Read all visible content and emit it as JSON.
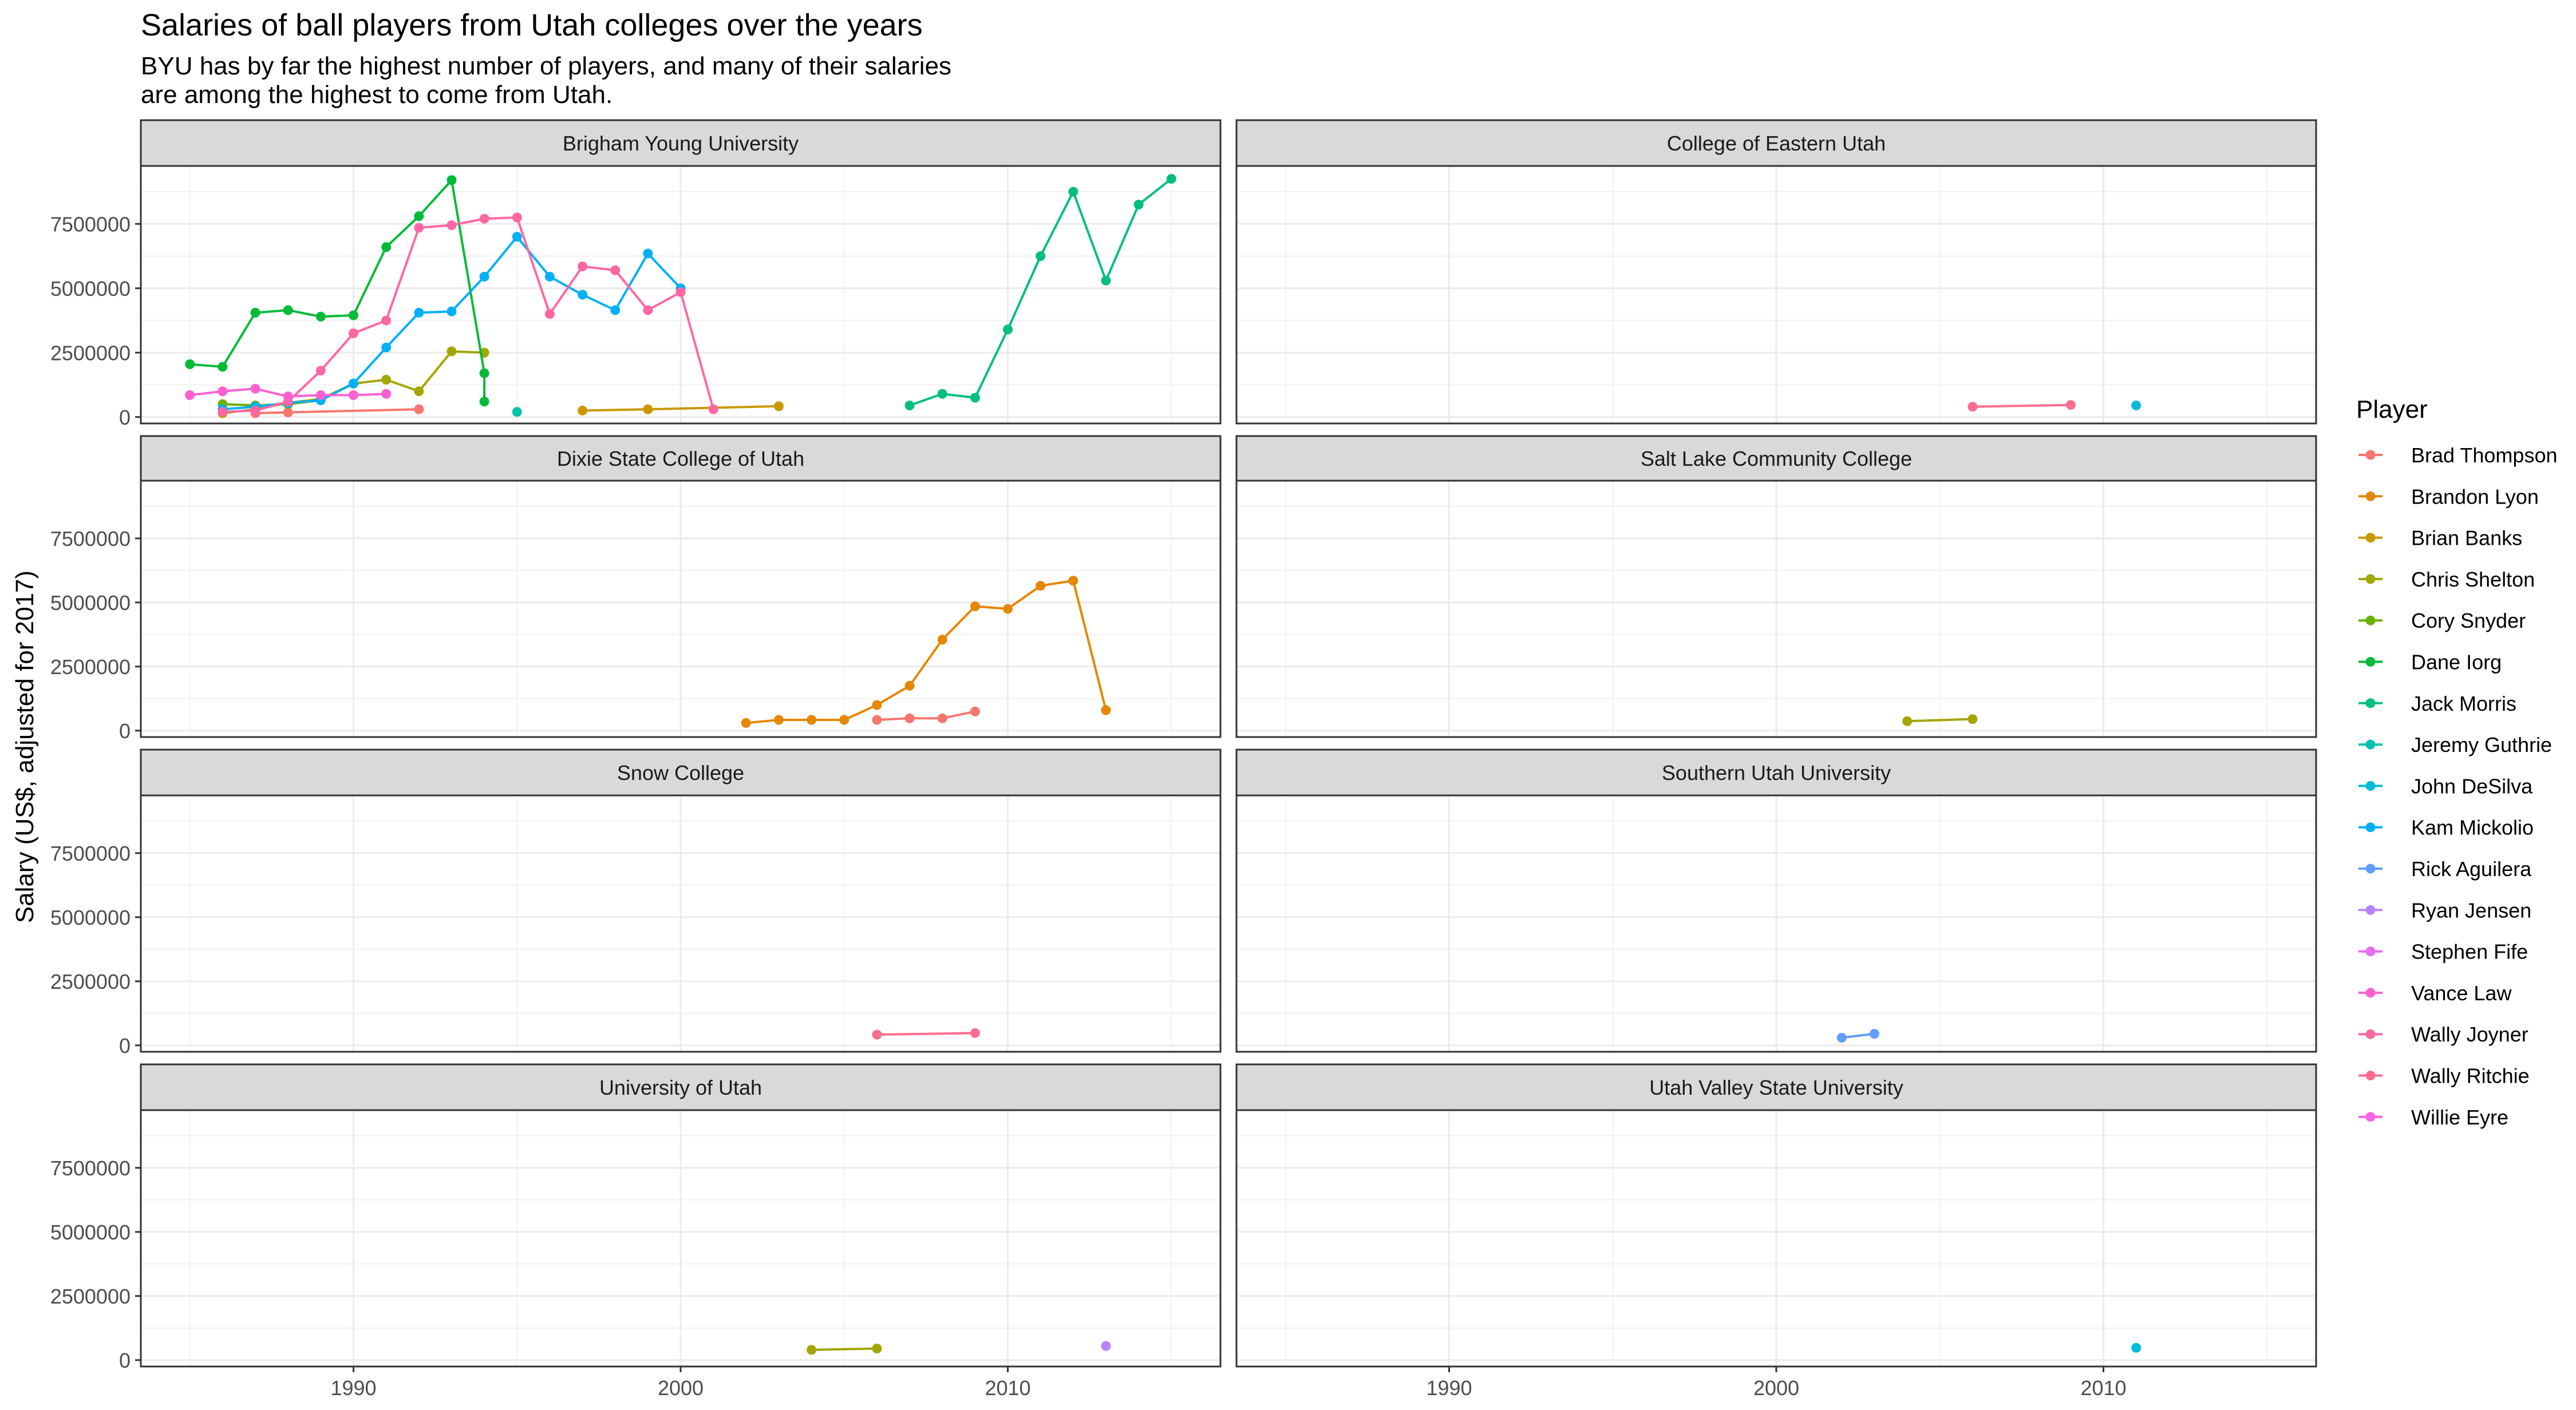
{
  "chart_data": {
    "type": "line",
    "title": "Salaries of ball players from Utah colleges over the years",
    "subtitle": [
      "BYU has by far the highest number of players, and many of their salaries",
      "are among the highest to come from Utah."
    ],
    "xlabel": "",
    "ylabel": "Salary (US$, adjusted for 2017)",
    "xlim": [
      1983.5,
      2016.5
    ],
    "ylim": [
      -250000,
      9750000
    ],
    "x_ticks": [
      1990,
      2000,
      2010
    ],
    "y_ticks": [
      0,
      2500000,
      5000000,
      7500000
    ],
    "y_tick_labels": [
      "0",
      "2500000",
      "5000000",
      "7500000"
    ],
    "grid": true,
    "legend_title": "Player",
    "legend_position": "right",
    "players": [
      {
        "name": "Brad Thompson",
        "color": "#F8766D"
      },
      {
        "name": "Brandon Lyon",
        "color": "#E58700"
      },
      {
        "name": "Brian Banks",
        "color": "#C99800"
      },
      {
        "name": "Chris Shelton",
        "color": "#A3A500"
      },
      {
        "name": "Cory Snyder",
        "color": "#6BB100"
      },
      {
        "name": "Dane Iorg",
        "color": "#00BA38"
      },
      {
        "name": "Jack Morris",
        "color": "#00BF7D"
      },
      {
        "name": "Jeremy Guthrie",
        "color": "#00C0AF"
      },
      {
        "name": "John DeSilva",
        "color": "#00BCD8"
      },
      {
        "name": "Kam Mickolio",
        "color": "#00B0F6"
      },
      {
        "name": "Rick Aguilera",
        "color": "#619CFF"
      },
      {
        "name": "Ryan Jensen",
        "color": "#B983FF"
      },
      {
        "name": "Stephen Fife",
        "color": "#E76BF3"
      },
      {
        "name": "Vance Law",
        "color": "#FD61D1"
      },
      {
        "name": "Wally Joyner",
        "color": "#FF67A4"
      },
      {
        "name": "Wally Ritchie",
        "color": "#FF6C90"
      },
      {
        "name": "Willie Eyre",
        "color": "#F564E3"
      }
    ],
    "panels": [
      {
        "college": "Brigham Young University",
        "series": [
          {
            "player": "Brad Thompson",
            "color": "#F8766D",
            "x": [
              1987,
              1988,
              1992
            ],
            "y": [
              150000,
              180000,
              300000
            ]
          },
          {
            "player": "Cory Snyder",
            "color": "#A3A500",
            "x": [
              1986,
              1987,
              1988,
              1989,
              1990,
              1991,
              1992,
              1993,
              1994
            ],
            "y": [
              150000,
              300000,
              550000,
              700000,
              1300000,
              1450000,
              1000000,
              2550000,
              2500000
            ]
          },
          {
            "player": "Dane Iorg",
            "color": "#6BB100",
            "x": [
              1986,
              1987,
              1988,
              1989,
              1990
            ],
            "y": [
              500000,
              450000,
              500000,
              650000,
              1300000
            ]
          },
          {
            "player": "Jack Morris",
            "color": "#00BA38",
            "x": [
              1985,
              1986,
              1987,
              1988,
              1989,
              1990,
              1991,
              1992,
              1993,
              1994,
              1994
            ],
            "y": [
              2050000,
              1950000,
              4050000,
              4150000,
              3900000,
              3950000,
              6600000,
              7800000,
              9200000,
              1700000,
              600000
            ]
          },
          {
            "player": "John DeSilva",
            "color": "#00C0AF",
            "x": [
              1995
            ],
            "y": [
              200000
            ]
          },
          {
            "player": "Rick Aguilera",
            "color": "#00B0F6",
            "x": [
              1986,
              1987,
              1988,
              1989,
              1990,
              1991,
              1992,
              1993,
              1994,
              1995,
              1996,
              1997,
              1998,
              1999,
              2000
            ],
            "y": [
              300000,
              400000,
              550000,
              650000,
              1300000,
              2700000,
              4050000,
              4100000,
              5450000,
              7000000,
              5450000,
              4750000,
              4150000,
              6350000,
              5000000
            ]
          },
          {
            "player": "Brian Banks",
            "color": "#C99800",
            "x": [
              1997,
              1999,
              2003
            ],
            "y": [
              250000,
              300000,
              420000
            ]
          },
          {
            "player": "Wally Joyner",
            "color": "#FF67A4",
            "x": [
              1986,
              1987,
              1988,
              1989,
              1990,
              1991,
              1992,
              1993,
              1994,
              1995,
              1996,
              1997,
              1998,
              1999,
              2000,
              2001
            ],
            "y": [
              200000,
              250000,
              600000,
              1800000,
              3250000,
              3750000,
              7350000,
              7450000,
              7700000,
              7750000,
              4000000,
              5850000,
              5700000,
              4150000,
              4850000,
              300000
            ]
          },
          {
            "player": "Vance Law",
            "color": "#FD61D1",
            "x": [
              1985,
              1986,
              1987,
              1988,
              1989,
              1990,
              1991
            ],
            "y": [
              850000,
              1000000,
              1100000,
              800000,
              850000,
              850000,
              900000
            ]
          },
          {
            "player": "Jeremy Guthrie",
            "color": "#00BF7D",
            "x": [
              2007,
              2008,
              2009,
              2010,
              2011,
              2012,
              2013,
              2014,
              2015
            ],
            "y": [
              450000,
              900000,
              750000,
              3400000,
              6250000,
              8750000,
              5300000,
              8250000,
              9250000
            ]
          }
        ]
      },
      {
        "college": "College of Eastern Utah",
        "series": [
          {
            "player": "Willie Eyre",
            "color": "#FF6C90",
            "x": [
              2006,
              2009
            ],
            "y": [
              400000,
              470000
            ]
          },
          {
            "player": "Kam Mickolio",
            "color": "#00BCD8",
            "x": [
              2011
            ],
            "y": [
              450000
            ]
          }
        ]
      },
      {
        "college": "Dixie State College of Utah",
        "series": [
          {
            "player": "Brandon Lyon",
            "color": "#E58700",
            "x": [
              2002,
              2003,
              2004,
              2005,
              2006,
              2007,
              2008,
              2009,
              2010,
              2011,
              2012,
              2013
            ],
            "y": [
              300000,
              420000,
              420000,
              420000,
              1000000,
              1750000,
              3550000,
              4850000,
              4750000,
              5650000,
              5850000,
              800000
            ]
          },
          {
            "player": "Brad Thompson",
            "color": "#F8766D",
            "x": [
              2006,
              2007,
              2008,
              2009
            ],
            "y": [
              420000,
              480000,
              480000,
              750000
            ]
          }
        ]
      },
      {
        "college": "Salt Lake Community College",
        "series": [
          {
            "player": "Chris Shelton",
            "color": "#A3A500",
            "x": [
              2004,
              2006
            ],
            "y": [
              370000,
              450000
            ]
          }
        ]
      },
      {
        "college": "Snow College",
        "series": [
          {
            "player": "Willie Eyre",
            "color": "#FF6C90",
            "x": [
              2006,
              2009
            ],
            "y": [
              420000,
              480000
            ]
          }
        ]
      },
      {
        "college": "Southern Utah University",
        "series": [
          {
            "player": "Ryan Jensen",
            "color": "#619CFF",
            "x": [
              2002,
              2003
            ],
            "y": [
              300000,
              450000
            ]
          }
        ]
      },
      {
        "college": "University of Utah",
        "series": [
          {
            "player": "Chris Shelton",
            "color": "#A3A500",
            "x": [
              2004,
              2006
            ],
            "y": [
              400000,
              450000
            ]
          },
          {
            "player": "Stephen Fife",
            "color": "#B983FF",
            "x": [
              2013
            ],
            "y": [
              550000
            ]
          }
        ]
      },
      {
        "college": "Utah Valley State University",
        "series": [
          {
            "player": "Kam Mickolio",
            "color": "#00BCD8",
            "x": [
              2011
            ],
            "y": [
              480000
            ]
          }
        ]
      }
    ]
  }
}
